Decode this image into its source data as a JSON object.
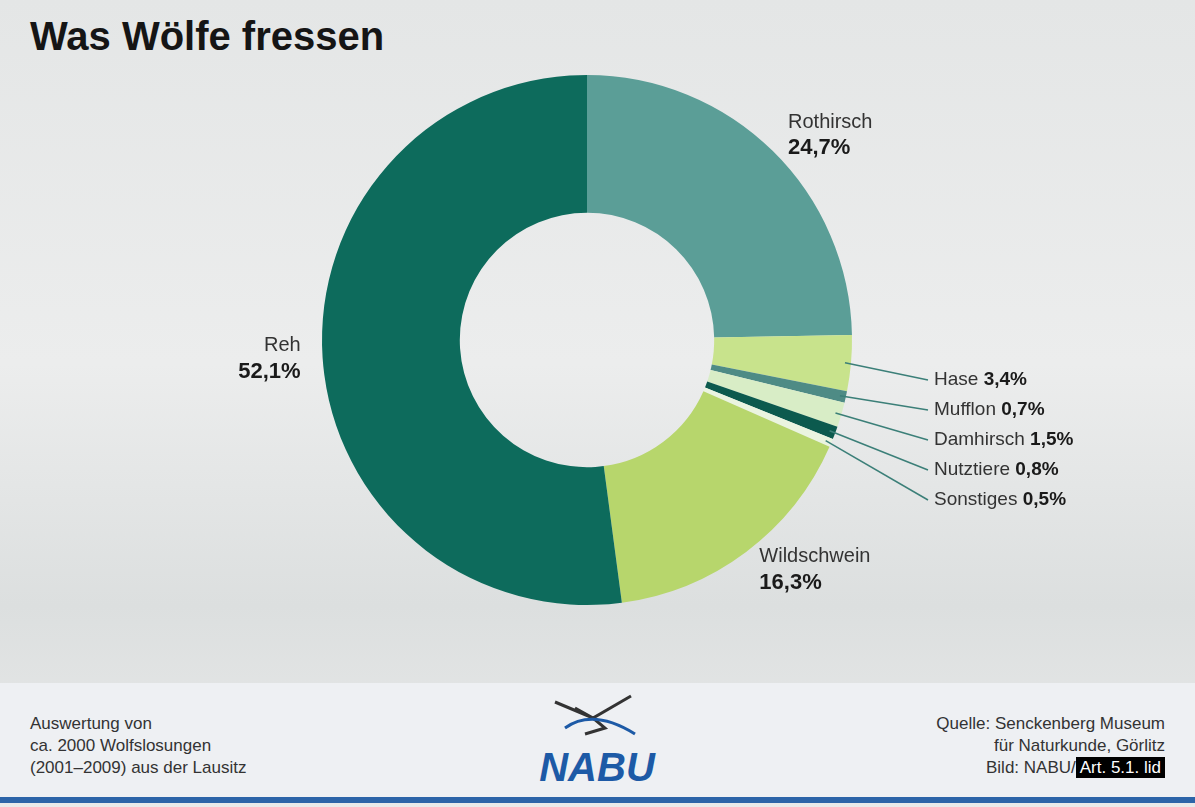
{
  "chart_data": {
    "type": "doughnut",
    "title": "Was Wölfe fressen",
    "categories": [
      "Rothirsch",
      "Hase",
      "Mufflon",
      "Damhirsch",
      "Nutztiere",
      "Sonstiges",
      "Wildschwein",
      "Reh"
    ],
    "values": [
      24.7,
      3.4,
      0.7,
      1.5,
      0.8,
      0.5,
      16.3,
      52.1
    ],
    "value_labels": [
      "24,7%",
      "3,4%",
      "0,7%",
      "1,5%",
      "0,8%",
      "0,5%",
      "16,3%",
      "52,1%"
    ],
    "colors": [
      "#5b9e97",
      "#c8e38c",
      "#4e8b85",
      "#d8edc6",
      "#0c5a4e",
      "#eaf4e0",
      "#b7d66c",
      "#0d6b5c"
    ],
    "data_labels": true
  },
  "footer": {
    "left": [
      "Auswertung von",
      "ca. 2000 Wolfslosungen",
      "(2001–2009) aus der Lausitz"
    ],
    "logo": "NABU",
    "right": [
      "Quelle: Senckenberg Museum",
      "für Naturkunde, Görlitz",
      "Bild: NABU/"
    ],
    "stamp": "Art. 5.1. lid"
  }
}
